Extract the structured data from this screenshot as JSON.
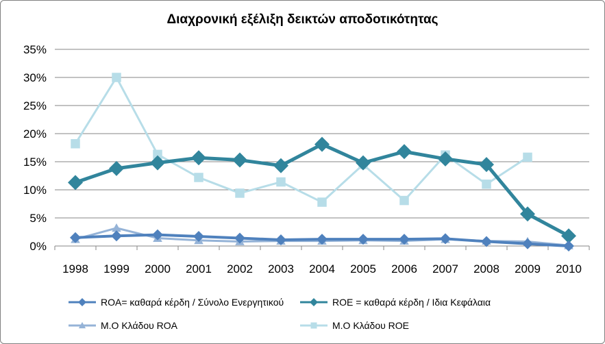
{
  "chart_data": {
    "type": "line",
    "title": "Διαχρονική εξέλιξη δεικτών αποδοτικότητας",
    "xlabel": "",
    "ylabel": "",
    "categories": [
      "1998",
      "1999",
      "2000",
      "2001",
      "2002",
      "2003",
      "2004",
      "2005",
      "2006",
      "2007",
      "2008",
      "2009",
      "2010"
    ],
    "ylim": [
      0,
      0.35
    ],
    "yticks": [
      0,
      0.05,
      0.1,
      0.15,
      0.2,
      0.25,
      0.3,
      0.35
    ],
    "ytick_labels": [
      "0%",
      "5%",
      "10%",
      "15%",
      "20%",
      "25%",
      "30%",
      "35%"
    ],
    "grid": true,
    "legend_position": "bottom",
    "series": [
      {
        "name": "ROA= καθαρά κέρδη / Σύνολο Ενεργητικού",
        "color": "#4f81bd",
        "marker": "diamond",
        "values": [
          0.015,
          0.018,
          0.02,
          0.017,
          0.014,
          0.011,
          0.012,
          0.012,
          0.012,
          0.013,
          0.008,
          0.004,
          0.0
        ]
      },
      {
        "name": "ROE = καθαρά κέρδη / Ιδια Κεφάλαια",
        "color": "#31859c",
        "marker": "diamond",
        "values": [
          0.113,
          0.138,
          0.148,
          0.157,
          0.153,
          0.143,
          0.181,
          0.148,
          0.168,
          0.155,
          0.145,
          0.057,
          0.018
        ]
      },
      {
        "name": "Μ.Ο Κλάδου ROA",
        "color": "#95b3d7",
        "marker": "triangle",
        "values": [
          0.012,
          0.032,
          0.014,
          0.01,
          0.008,
          0.009,
          0.009,
          0.01,
          0.009,
          0.012,
          0.009,
          0.008,
          0.001
        ]
      },
      {
        "name": "Μ.Ο Κλάδου ROE",
        "color": "#b7dde8",
        "marker": "square",
        "values": [
          0.182,
          0.3,
          0.163,
          0.122,
          0.094,
          0.114,
          0.078,
          0.145,
          0.081,
          0.162,
          0.11,
          0.158,
          null
        ]
      }
    ]
  }
}
